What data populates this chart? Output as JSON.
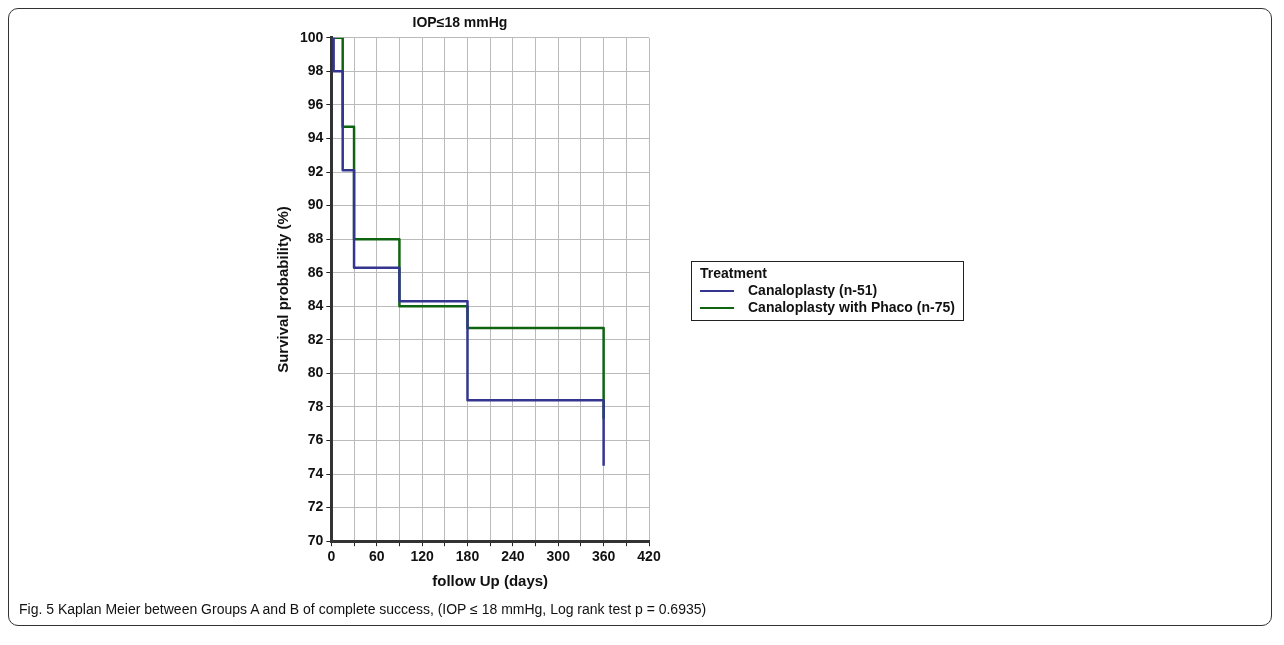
{
  "chart_data": {
    "type": "step",
    "title": "IOP≤18 mmHg",
    "xlabel": "follow Up (days)",
    "ylabel": "Survival probability (%)",
    "legend_title": "Treatment",
    "series": [
      {
        "name": "Canaloplasty (n-51)",
        "color": "#33358f",
        "x": [
          0,
          3,
          15,
          30,
          90,
          180,
          360,
          360
        ],
        "values": [
          100,
          98,
          92.1,
          86.3,
          84.3,
          78.4,
          78.4,
          74.5
        ]
      },
      {
        "name": "Canaloplasty with Phaco (n-75)",
        "color": "#0f6410",
        "x": [
          0,
          15,
          30,
          90,
          180,
          360,
          360
        ],
        "values": [
          100,
          94.7,
          88,
          84,
          82.7,
          82.7,
          77.3
        ]
      }
    ],
    "xlim": [
      0,
      420
    ],
    "xticks": [
      0,
      {
        "value": 30,
        "label": null
      },
      60,
      {
        "value": 90,
        "label": null
      },
      120,
      {
        "value": 150,
        "label": null
      },
      180,
      {
        "value": 210,
        "label": null
      },
      240,
      {
        "value": 270,
        "label": null
      },
      300,
      {
        "value": 330,
        "label": null
      },
      360,
      {
        "value": 390,
        "label": null
      },
      420
    ],
    "ylim": [
      70,
      100
    ],
    "yticks": [
      70,
      72,
      74,
      76,
      78,
      80,
      82,
      84,
      86,
      88,
      90,
      92,
      94,
      96,
      98,
      100
    ],
    "grid": true,
    "legend": "right",
    "marker": "none",
    "line_style": "solid",
    "annotations": [
      "Fig. 5 Kaplan Meier between Groups A and B of complete success, (IOP ≤ 18 mmHg, Log rank test p = 0.6935)"
    ]
  }
}
